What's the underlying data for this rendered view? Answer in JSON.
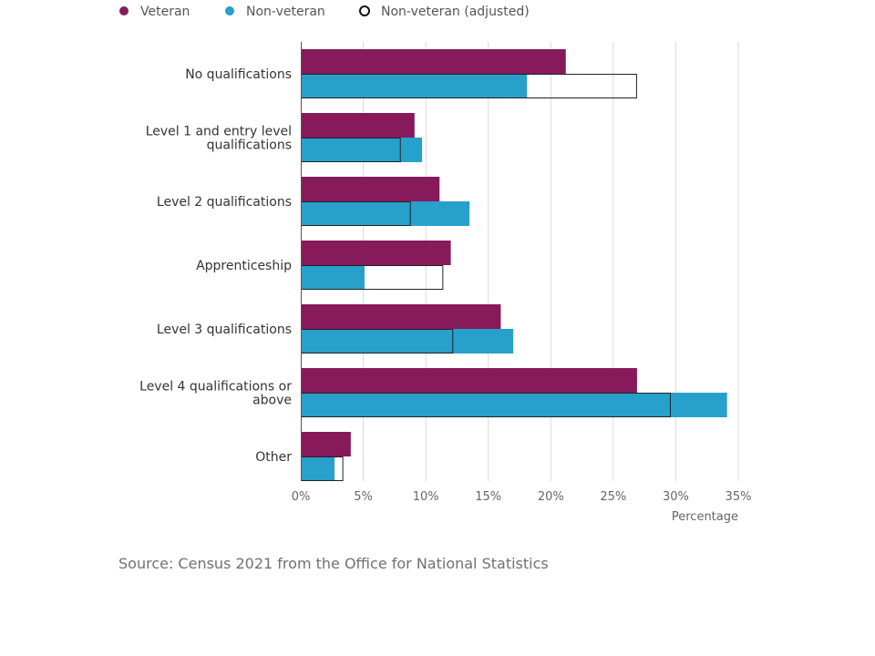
{
  "colors": {
    "veteran": "#871a5b",
    "non_veteran": "#27a0cc",
    "adjusted_outline": "#222222",
    "grid": "#d9d9d9",
    "axis": "#555555"
  },
  "legend": {
    "items": [
      {
        "label": "Veteran",
        "marker": "filled-circle-veteran"
      },
      {
        "label": "Non-veteran",
        "marker": "filled-circle-non-veteran"
      },
      {
        "label": "Non-veteran (adjusted)",
        "marker": "hollow-circle"
      }
    ]
  },
  "source": "Source: Census 2021 from the Office for National Statistics",
  "chart_data": {
    "type": "bar",
    "orientation": "horizontal",
    "xlabel": "Percentage",
    "xlim": [
      0,
      35
    ],
    "xticks": [
      0,
      5,
      10,
      15,
      20,
      25,
      30,
      35
    ],
    "xtick_labels": [
      "0%",
      "5%",
      "10%",
      "15%",
      "20%",
      "25%",
      "30%",
      "35%"
    ],
    "grid": "vertical",
    "legend_position": "top-left",
    "categories": [
      [
        "No qualifications"
      ],
      [
        "Level 1 and entry level",
        "qualifications"
      ],
      [
        "Level 2 qualifications"
      ],
      [
        "Apprenticeship"
      ],
      [
        "Level 3 qualifications"
      ],
      [
        "Level 4 qualifications or",
        "above"
      ],
      [
        "Other"
      ]
    ],
    "series": [
      {
        "name": "Veteran",
        "values": [
          21.2,
          9.1,
          11.1,
          12.0,
          16.0,
          26.9,
          4.0
        ]
      },
      {
        "name": "Non-veteran",
        "values": [
          18.1,
          9.7,
          13.5,
          5.1,
          17.0,
          34.1,
          2.7
        ]
      },
      {
        "name": "Non-veteran (adjusted)",
        "values": [
          26.9,
          8.0,
          8.8,
          11.4,
          12.2,
          29.6,
          3.4
        ]
      }
    ]
  }
}
